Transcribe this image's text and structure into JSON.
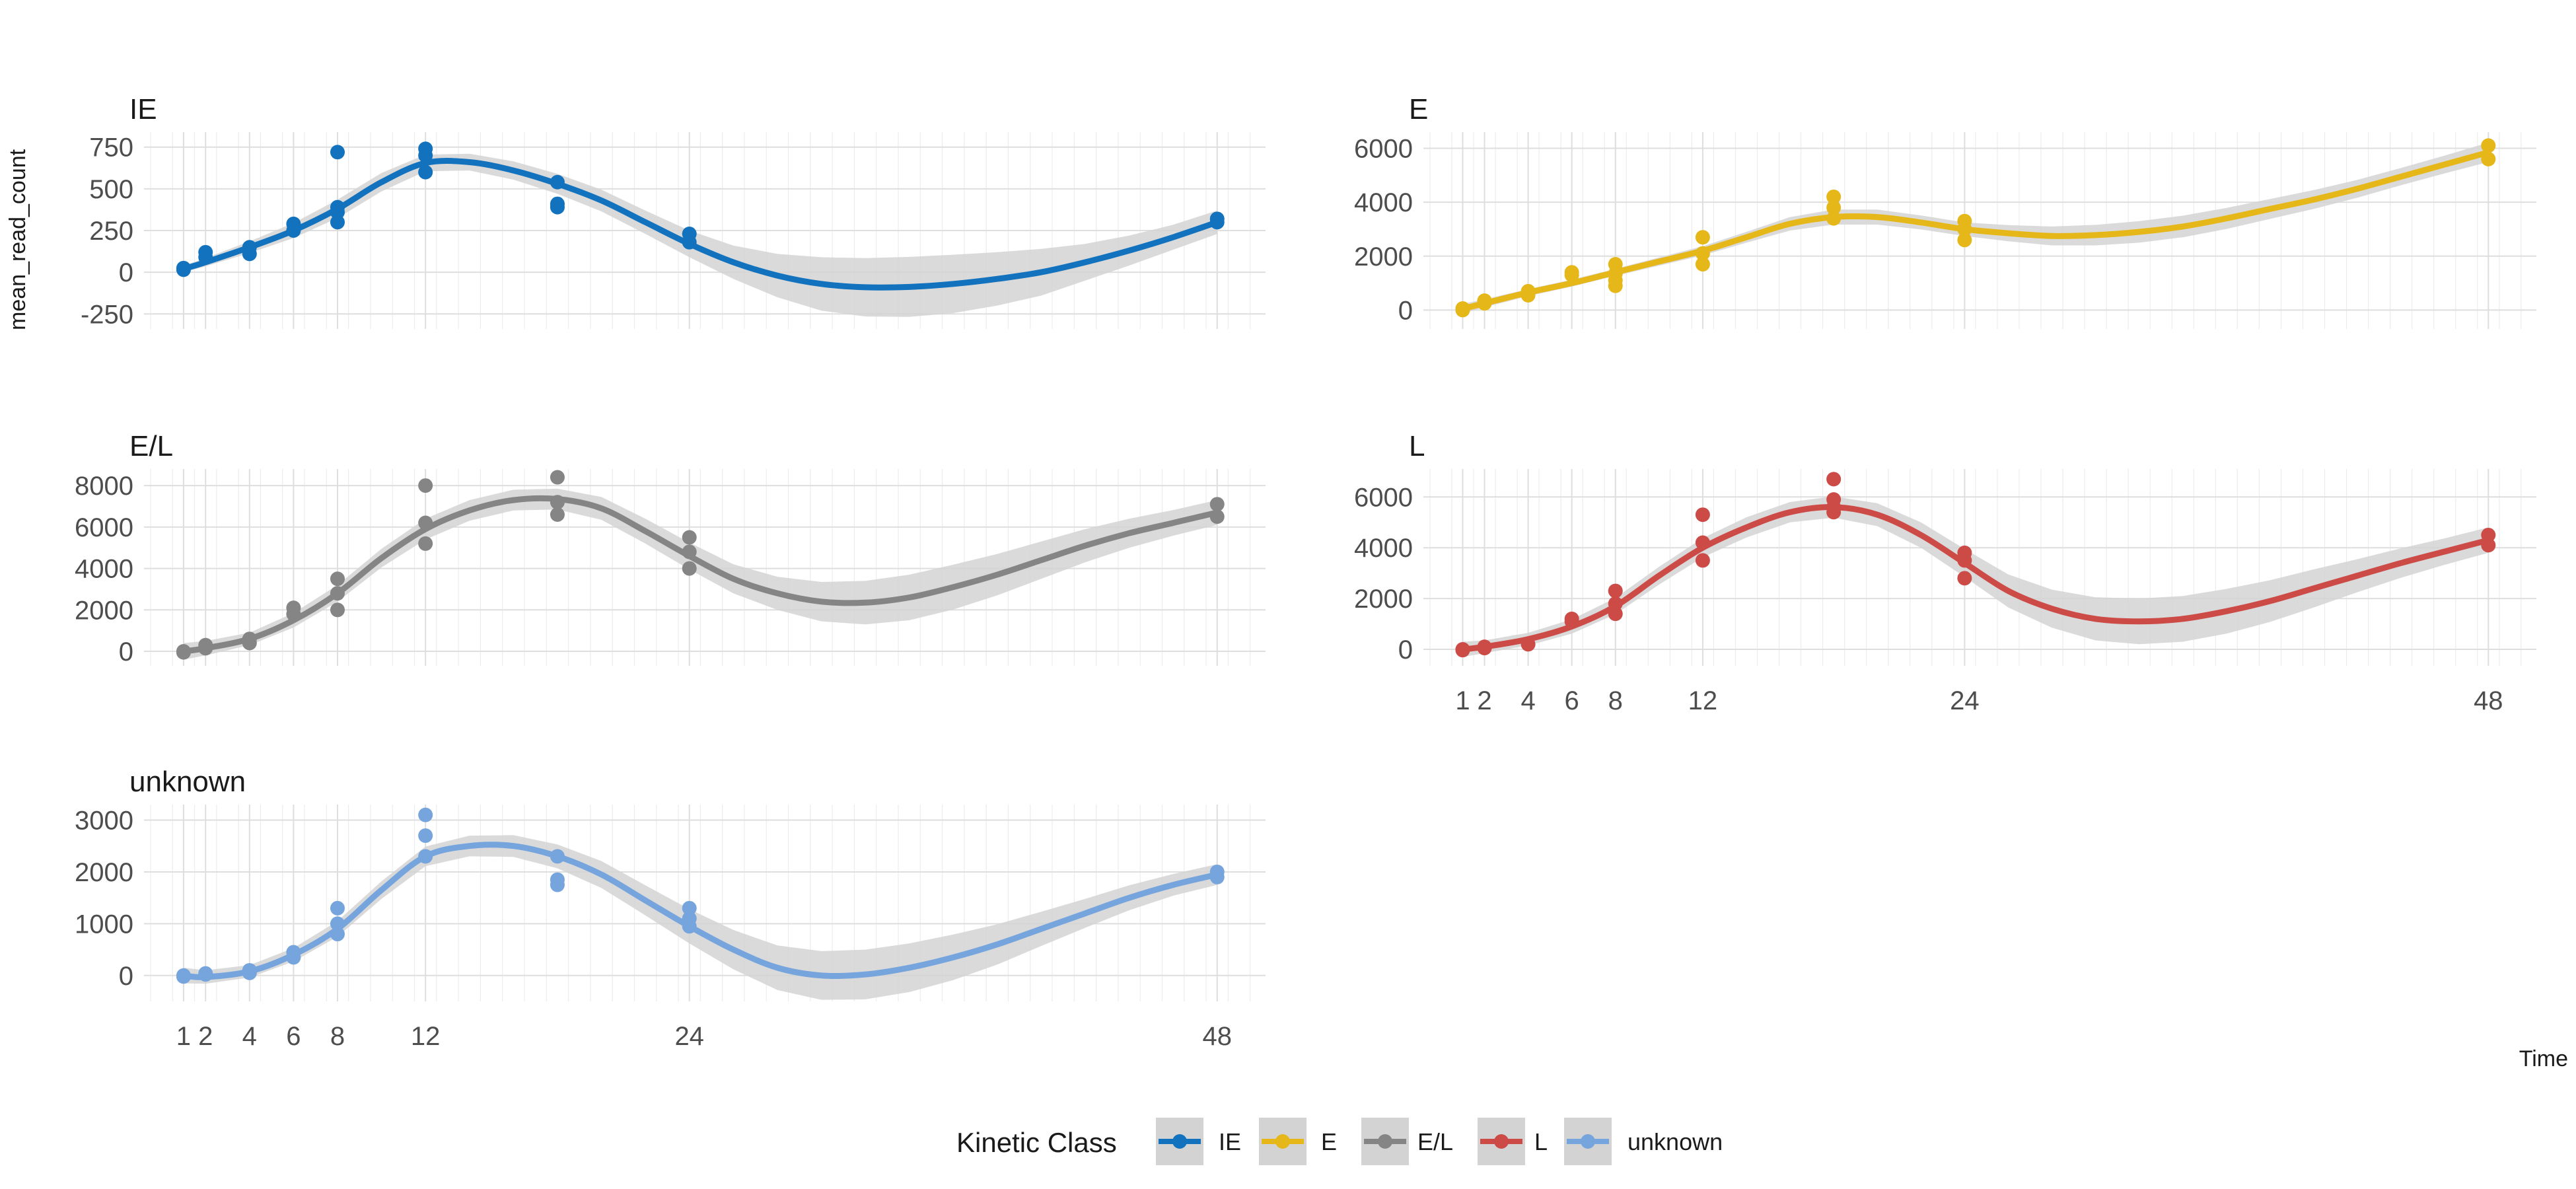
{
  "chart_data": {
    "type": "scatter",
    "xlabel": "Time",
    "ylabel": "mean_read_count",
    "x_ticks": [
      1,
      2,
      4,
      6,
      8,
      12,
      24,
      48
    ],
    "x_range": [
      -0.8,
      50.2
    ],
    "grid": true,
    "ribbon_color": "#d3d3d3",
    "legend": {
      "title": "Kinetic Class",
      "position": "bottom",
      "entries": [
        "IE",
        "E",
        "E/L",
        "L",
        "unknown"
      ]
    },
    "facets": [
      {
        "title": "IE",
        "color": "#1272bd",
        "ylim": [
          -340,
          840
        ],
        "y_ticks": [
          -250,
          0,
          250,
          500,
          750
        ],
        "y_tick_labels": [
          "-250",
          "0",
          "250",
          "500",
          "750"
        ],
        "show_x_labels": false,
        "points": [
          [
            1,
            15
          ],
          [
            1,
            25
          ],
          [
            2,
            90
          ],
          [
            2,
            120
          ],
          [
            4,
            110
          ],
          [
            4,
            150
          ],
          [
            6,
            250
          ],
          [
            6,
            290
          ],
          [
            8,
            300
          ],
          [
            8,
            360
          ],
          [
            8,
            390
          ],
          [
            8,
            720
          ],
          [
            12,
            600
          ],
          [
            12,
            700
          ],
          [
            12,
            740
          ],
          [
            18,
            390
          ],
          [
            18,
            410
          ],
          [
            18,
            540
          ],
          [
            24,
            180
          ],
          [
            24,
            230
          ],
          [
            48,
            300
          ],
          [
            48,
            320
          ]
        ],
        "smooth": [
          [
            1,
            20
          ],
          [
            2,
            60
          ],
          [
            4,
            150
          ],
          [
            6,
            250
          ],
          [
            8,
            380
          ],
          [
            10,
            540
          ],
          [
            12,
            655
          ],
          [
            14,
            660
          ],
          [
            16,
            610
          ],
          [
            18,
            530
          ],
          [
            20,
            430
          ],
          [
            22,
            300
          ],
          [
            24,
            170
          ],
          [
            26,
            60
          ],
          [
            28,
            -20
          ],
          [
            30,
            -70
          ],
          [
            32,
            -90
          ],
          [
            34,
            -88
          ],
          [
            36,
            -70
          ],
          [
            38,
            -40
          ],
          [
            40,
            0
          ],
          [
            42,
            60
          ],
          [
            44,
            130
          ],
          [
            46,
            210
          ],
          [
            48,
            300
          ]
        ],
        "band": [
          20,
          25,
          35,
          45,
          55,
          55,
          50,
          50,
          55,
          60,
          65,
          70,
          80,
          100,
          130,
          160,
          175,
          180,
          175,
          160,
          140,
          110,
          90,
          75,
          70
        ]
      },
      {
        "title": "E",
        "color": "#e6b718",
        "ylim": [
          -700,
          6600
        ],
        "y_ticks": [
          0,
          2000,
          4000,
          6000
        ],
        "y_tick_labels": [
          "0",
          "2000",
          "4000",
          "6000"
        ],
        "show_x_labels": false,
        "points": [
          [
            1,
            0
          ],
          [
            1,
            60
          ],
          [
            2,
            250
          ],
          [
            2,
            350
          ],
          [
            4,
            550
          ],
          [
            4,
            700
          ],
          [
            6,
            1300
          ],
          [
            6,
            1400
          ],
          [
            8,
            900
          ],
          [
            8,
            1100
          ],
          [
            8,
            1350
          ],
          [
            8,
            1700
          ],
          [
            12,
            1700
          ],
          [
            12,
            2100
          ],
          [
            12,
            2700
          ],
          [
            18,
            3400
          ],
          [
            18,
            3800
          ],
          [
            18,
            4200
          ],
          [
            24,
            2600
          ],
          [
            24,
            3000
          ],
          [
            24,
            3300
          ],
          [
            48,
            5600
          ],
          [
            48,
            6100
          ]
        ],
        "smooth": [
          [
            1,
            50
          ],
          [
            2,
            250
          ],
          [
            4,
            650
          ],
          [
            6,
            1000
          ],
          [
            8,
            1400
          ],
          [
            10,
            1800
          ],
          [
            12,
            2200
          ],
          [
            14,
            2700
          ],
          [
            16,
            3200
          ],
          [
            18,
            3450
          ],
          [
            20,
            3450
          ],
          [
            22,
            3250
          ],
          [
            24,
            3000
          ],
          [
            26,
            2850
          ],
          [
            28,
            2750
          ],
          [
            30,
            2780
          ],
          [
            32,
            2900
          ],
          [
            34,
            3100
          ],
          [
            36,
            3400
          ],
          [
            38,
            3750
          ],
          [
            40,
            4100
          ],
          [
            42,
            4500
          ],
          [
            44,
            4950
          ],
          [
            46,
            5400
          ],
          [
            48,
            5850
          ]
        ],
        "band": [
          180,
          150,
          130,
          130,
          130,
          150,
          170,
          200,
          250,
          280,
          280,
          260,
          250,
          300,
          350,
          380,
          400,
          400,
          390,
          370,
          350,
          330,
          320,
          330,
          360
        ]
      },
      {
        "title": "E/L",
        "color": "#858585",
        "ylim": [
          -700,
          8800
        ],
        "y_ticks": [
          0,
          2000,
          4000,
          6000,
          8000
        ],
        "y_tick_labels": [
          "0",
          "2000",
          "4000",
          "6000",
          "8000"
        ],
        "show_x_labels": false,
        "points": [
          [
            1,
            0
          ],
          [
            1,
            -50
          ],
          [
            2,
            150
          ],
          [
            2,
            300
          ],
          [
            4,
            400
          ],
          [
            4,
            600
          ],
          [
            6,
            1800
          ],
          [
            6,
            2100
          ],
          [
            8,
            2000
          ],
          [
            8,
            2800
          ],
          [
            8,
            3500
          ],
          [
            12,
            5200
          ],
          [
            12,
            6200
          ],
          [
            12,
            8000
          ],
          [
            18,
            6600
          ],
          [
            18,
            7200
          ],
          [
            18,
            8400
          ],
          [
            24,
            4000
          ],
          [
            24,
            4800
          ],
          [
            24,
            5500
          ],
          [
            48,
            6500
          ],
          [
            48,
            7100
          ]
        ],
        "smooth": [
          [
            1,
            0
          ],
          [
            2,
            150
          ],
          [
            4,
            600
          ],
          [
            6,
            1500
          ],
          [
            8,
            2800
          ],
          [
            10,
            4500
          ],
          [
            12,
            5900
          ],
          [
            14,
            6800
          ],
          [
            16,
            7300
          ],
          [
            18,
            7350
          ],
          [
            20,
            6900
          ],
          [
            22,
            5800
          ],
          [
            24,
            4600
          ],
          [
            26,
            3500
          ],
          [
            28,
            2800
          ],
          [
            30,
            2400
          ],
          [
            32,
            2350
          ],
          [
            34,
            2600
          ],
          [
            36,
            3100
          ],
          [
            38,
            3700
          ],
          [
            40,
            4400
          ],
          [
            42,
            5100
          ],
          [
            44,
            5700
          ],
          [
            46,
            6200
          ],
          [
            48,
            6700
          ]
        ],
        "band": [
          400,
          350,
          300,
          350,
          400,
          450,
          500,
          500,
          500,
          500,
          550,
          600,
          650,
          700,
          800,
          950,
          1050,
          1100,
          1080,
          1000,
          900,
          800,
          700,
          620,
          600
        ]
      },
      {
        "title": "L",
        "color": "#cc4b47",
        "ylim": [
          -650,
          7100
        ],
        "y_ticks": [
          0,
          2000,
          4000,
          6000
        ],
        "y_tick_labels": [
          "0",
          "2000",
          "4000",
          "6000"
        ],
        "show_x_labels": true,
        "points": [
          [
            1,
            0
          ],
          [
            1,
            -30
          ],
          [
            2,
            50
          ],
          [
            2,
            100
          ],
          [
            4,
            200
          ],
          [
            6,
            1100
          ],
          [
            6,
            1200
          ],
          [
            8,
            1400
          ],
          [
            8,
            1800
          ],
          [
            8,
            2300
          ],
          [
            12,
            3500
          ],
          [
            12,
            4200
          ],
          [
            12,
            5300
          ],
          [
            18,
            5400
          ],
          [
            18,
            5600
          ],
          [
            18,
            5900
          ],
          [
            18,
            6700
          ],
          [
            24,
            2800
          ],
          [
            24,
            3500
          ],
          [
            24,
            3800
          ],
          [
            48,
            4100
          ],
          [
            48,
            4500
          ]
        ],
        "smooth": [
          [
            1,
            0
          ],
          [
            2,
            100
          ],
          [
            4,
            400
          ],
          [
            6,
            900
          ],
          [
            8,
            1700
          ],
          [
            10,
            2900
          ],
          [
            12,
            4000
          ],
          [
            14,
            4800
          ],
          [
            16,
            5400
          ],
          [
            18,
            5600
          ],
          [
            20,
            5300
          ],
          [
            22,
            4500
          ],
          [
            24,
            3400
          ],
          [
            26,
            2300
          ],
          [
            28,
            1600
          ],
          [
            30,
            1200
          ],
          [
            32,
            1100
          ],
          [
            34,
            1200
          ],
          [
            36,
            1500
          ],
          [
            38,
            1900
          ],
          [
            40,
            2400
          ],
          [
            42,
            2900
          ],
          [
            44,
            3400
          ],
          [
            46,
            3850
          ],
          [
            48,
            4300
          ]
        ],
        "band": [
          300,
          250,
          250,
          280,
          320,
          350,
          380,
          400,
          400,
          420,
          450,
          500,
          550,
          650,
          750,
          850,
          900,
          900,
          880,
          820,
          750,
          650,
          580,
          520,
          500
        ]
      },
      {
        "title": "unknown",
        "color": "#76a4dd",
        "ylim": [
          -500,
          3300
        ],
        "y_ticks": [
          0,
          1000,
          2000,
          3000
        ],
        "y_tick_labels": [
          "0",
          "1000",
          "2000",
          "3000"
        ],
        "show_x_labels": true,
        "points": [
          [
            1,
            0
          ],
          [
            1,
            -20
          ],
          [
            2,
            20
          ],
          [
            2,
            40
          ],
          [
            4,
            50
          ],
          [
            4,
            100
          ],
          [
            6,
            350
          ],
          [
            6,
            450
          ],
          [
            8,
            800
          ],
          [
            8,
            1000
          ],
          [
            8,
            1300
          ],
          [
            12,
            2300
          ],
          [
            12,
            2700
          ],
          [
            12,
            3100
          ],
          [
            18,
            1750
          ],
          [
            18,
            1850
          ],
          [
            18,
            2300
          ],
          [
            24,
            950
          ],
          [
            24,
            1100
          ],
          [
            24,
            1300
          ],
          [
            48,
            1900
          ],
          [
            48,
            2000
          ]
        ],
        "smooth": [
          [
            1,
            0
          ],
          [
            2,
            -30
          ],
          [
            4,
            80
          ],
          [
            6,
            400
          ],
          [
            8,
            900
          ],
          [
            10,
            1650
          ],
          [
            12,
            2300
          ],
          [
            14,
            2500
          ],
          [
            16,
            2500
          ],
          [
            18,
            2300
          ],
          [
            20,
            1950
          ],
          [
            22,
            1450
          ],
          [
            24,
            950
          ],
          [
            26,
            500
          ],
          [
            28,
            150
          ],
          [
            30,
            0
          ],
          [
            32,
            20
          ],
          [
            34,
            150
          ],
          [
            36,
            350
          ],
          [
            38,
            600
          ],
          [
            40,
            900
          ],
          [
            42,
            1200
          ],
          [
            44,
            1500
          ],
          [
            46,
            1750
          ],
          [
            48,
            1950
          ]
        ],
        "band": [
          150,
          130,
          120,
          130,
          150,
          170,
          190,
          200,
          210,
          230,
          260,
          290,
          330,
          380,
          430,
          470,
          480,
          470,
          440,
          390,
          330,
          280,
          240,
          210,
          200
        ]
      }
    ]
  }
}
